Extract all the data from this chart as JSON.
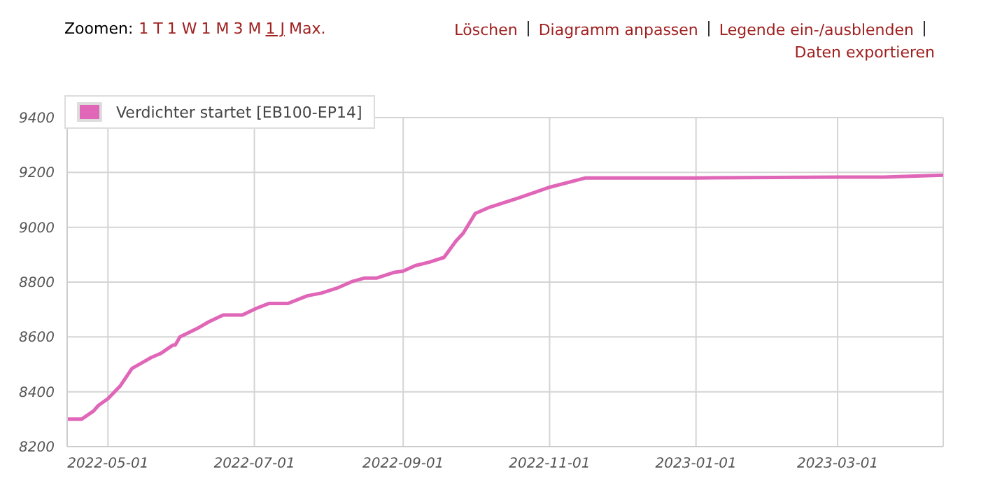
{
  "chart_data": {
    "type": "line",
    "annotations": [
      "Zoomen:",
      "1 T",
      "1 W",
      "1 M",
      "3 M",
      "1 J",
      "Max.",
      "Löschen",
      "Diagramm anpassen",
      "Legende ein-/ausblenden",
      "Daten exportieren"
    ],
    "x": [
      "2022-04-14",
      "2022-04-20",
      "2022-04-25",
      "2022-04-27",
      "2022-05-01",
      "2022-05-06",
      "2022-05-11",
      "2022-05-16",
      "2022-05-19",
      "2022-05-23",
      "2022-05-28",
      "2022-05-29",
      "2022-05-31",
      "2022-06-07",
      "2022-06-12",
      "2022-06-18",
      "2022-06-26",
      "2022-07-02",
      "2022-07-07",
      "2022-07-15",
      "2022-07-23",
      "2022-07-29",
      "2022-08-05",
      "2022-08-11",
      "2022-08-16",
      "2022-08-21",
      "2022-08-28",
      "2022-09-01",
      "2022-09-06",
      "2022-09-12",
      "2022-09-18",
      "2022-09-23",
      "2022-09-26",
      "2022-10-01",
      "2022-10-07",
      "2022-10-19",
      "2022-11-01",
      "2022-11-16",
      "2023-01-01",
      "2023-03-01",
      "2023-03-20",
      "2023-04-14"
    ],
    "series": [
      {
        "name": "Verdichter startet [EB100-EP14]",
        "color": "#e066b8",
        "values": [
          8300,
          8300,
          8330,
          8350,
          8375,
          8420,
          8485,
          8510,
          8525,
          8540,
          8570,
          8570,
          8600,
          8630,
          8655,
          8680,
          8680,
          8705,
          8722,
          8722,
          8750,
          8760,
          8780,
          8803,
          8815,
          8815,
          8835,
          8840,
          8860,
          8873,
          8890,
          8950,
          8978,
          9050,
          9073,
          9107,
          9146,
          9180,
          9180,
          9183,
          9183,
          9190
        ]
      }
    ],
    "xlim": [
      "2022-04-14",
      "2023-04-14"
    ],
    "xticks": [
      "2022-05-01",
      "2022-07-01",
      "2022-09-01",
      "2022-11-01",
      "2023-01-01",
      "2023-03-01"
    ],
    "ylim": [
      8200,
      9400
    ],
    "yticks": [
      8200,
      8400,
      8600,
      8800,
      9000,
      9200,
      9400
    ],
    "grid": true,
    "legend": "top left",
    "marker": "none",
    "line_style": "solid"
  }
}
